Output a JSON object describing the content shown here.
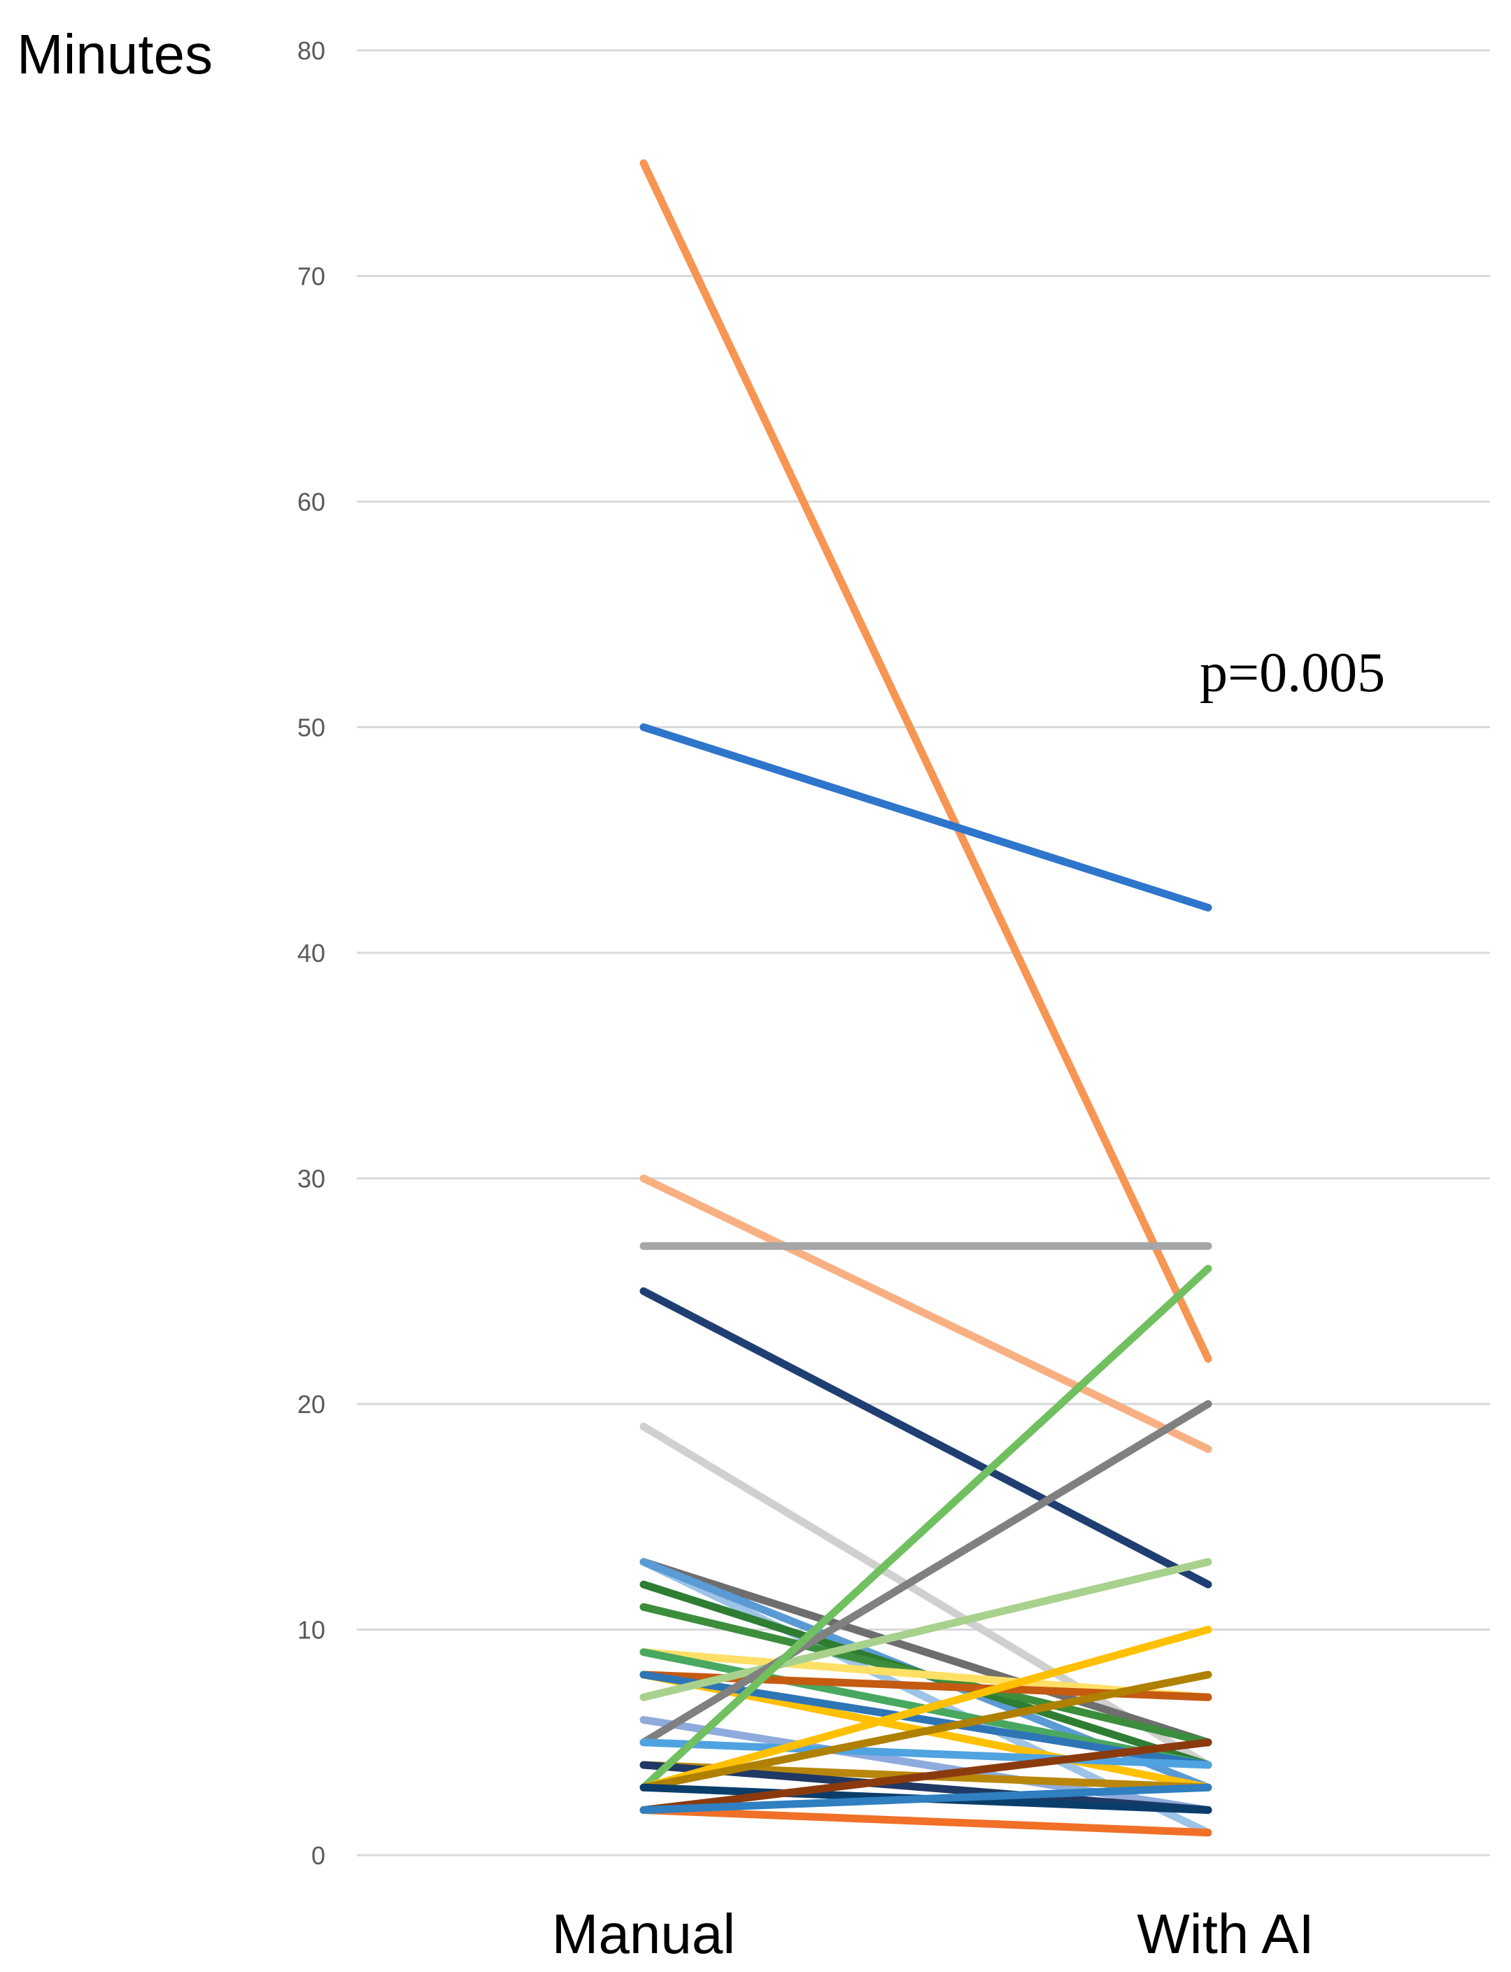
{
  "chart_data": {
    "type": "line",
    "ylabel": "Minutes",
    "categories": [
      "Manual",
      "With AI"
    ],
    "ylim": [
      0,
      80
    ],
    "yticks": [
      "0",
      "10",
      "20",
      "30",
      "40",
      "50",
      "60",
      "70",
      "80"
    ],
    "grid": true,
    "annotation": "p=0.005",
    "series": [
      {
        "values": [
          75,
          22
        ],
        "color": "#F79552"
      },
      {
        "values": [
          50,
          42
        ],
        "color": "#2E75CC"
      },
      {
        "values": [
          30,
          18
        ],
        "color": "#F8B083"
      },
      {
        "values": [
          27,
          27
        ],
        "color": "#A6A6A6"
      },
      {
        "values": [
          25,
          12
        ],
        "color": "#1F3F73"
      },
      {
        "values": [
          19,
          4
        ],
        "color": "#D0D0D0"
      },
      {
        "values": [
          13,
          5
        ],
        "color": "#6E6E6E"
      },
      {
        "values": [
          13,
          1
        ],
        "color": "#9DC3E6"
      },
      {
        "values": [
          13,
          3
        ],
        "color": "#5B9BD5"
      },
      {
        "values": [
          12,
          4
        ],
        "color": "#2E7D32"
      },
      {
        "values": [
          11,
          5
        ],
        "color": "#3C8D3C"
      },
      {
        "values": [
          9,
          7
        ],
        "color": "#FFE066"
      },
      {
        "values": [
          9,
          4
        ],
        "color": "#48A860"
      },
      {
        "values": [
          8,
          7
        ],
        "color": "#C55A11"
      },
      {
        "values": [
          8,
          3
        ],
        "color": "#FFC000"
      },
      {
        "values": [
          8,
          4
        ],
        "color": "#2E75B6"
      },
      {
        "values": [
          7,
          13
        ],
        "color": "#A9D18E"
      },
      {
        "values": [
          6,
          2
        ],
        "color": "#8FAADC"
      },
      {
        "values": [
          5,
          20
        ],
        "color": "#808080"
      },
      {
        "values": [
          5,
          4
        ],
        "color": "#4FA3E0"
      },
      {
        "values": [
          4,
          3
        ],
        "color": "#B8860B"
      },
      {
        "values": [
          4,
          2
        ],
        "color": "#203864"
      },
      {
        "values": [
          3,
          26
        ],
        "color": "#70C060"
      },
      {
        "values": [
          3,
          10
        ],
        "color": "#FFC000"
      },
      {
        "values": [
          3,
          8
        ],
        "color": "#B08000"
      },
      {
        "values": [
          3,
          2
        ],
        "color": "#0B3D6B"
      },
      {
        "values": [
          2,
          5
        ],
        "color": "#8B3A0E"
      },
      {
        "values": [
          2,
          1
        ],
        "color": "#F07028"
      },
      {
        "values": [
          2,
          3
        ],
        "color": "#2F7FC1"
      }
    ]
  }
}
